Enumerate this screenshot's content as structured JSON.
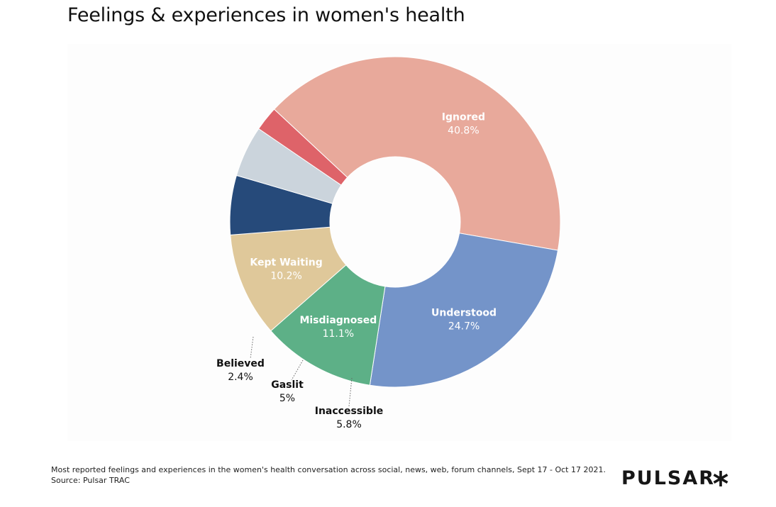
{
  "title": "Feelings & experiences in women's health",
  "chart_data": {
    "type": "pie",
    "title": "Feelings & experiences in women's health",
    "donut": true,
    "categories": [
      "Ignored",
      "Understood",
      "Misdiagnosed",
      "Kept Waiting",
      "Inaccessible",
      "Gaslit",
      "Believed"
    ],
    "values": [
      40.8,
      24.7,
      11.1,
      10.2,
      5.8,
      5,
      2.4
    ],
    "value_labels": [
      "40.8%",
      "24.7%",
      "11.1%",
      "10.2%",
      "5.8%",
      "5%",
      "2.4%"
    ],
    "colors": [
      "#e8a99b",
      "#7494c9",
      "#5db087",
      "#dfc89a",
      "#264a7a",
      "#cbd4dc",
      "#de6369"
    ],
    "label_color_inside": [
      "#ffffff",
      "#ffffff",
      "#ffffff",
      "#ffffff",
      "#111111",
      "#111111",
      "#111111"
    ]
  },
  "footnote": {
    "line1": "Most reported feelings and experiences in the women's health conversation across social, news, web, forum channels, Sept 17 - Oct 17 2021.",
    "line2": "Source: Pulsar TRAC"
  },
  "brand": {
    "name": "PULSAR"
  }
}
